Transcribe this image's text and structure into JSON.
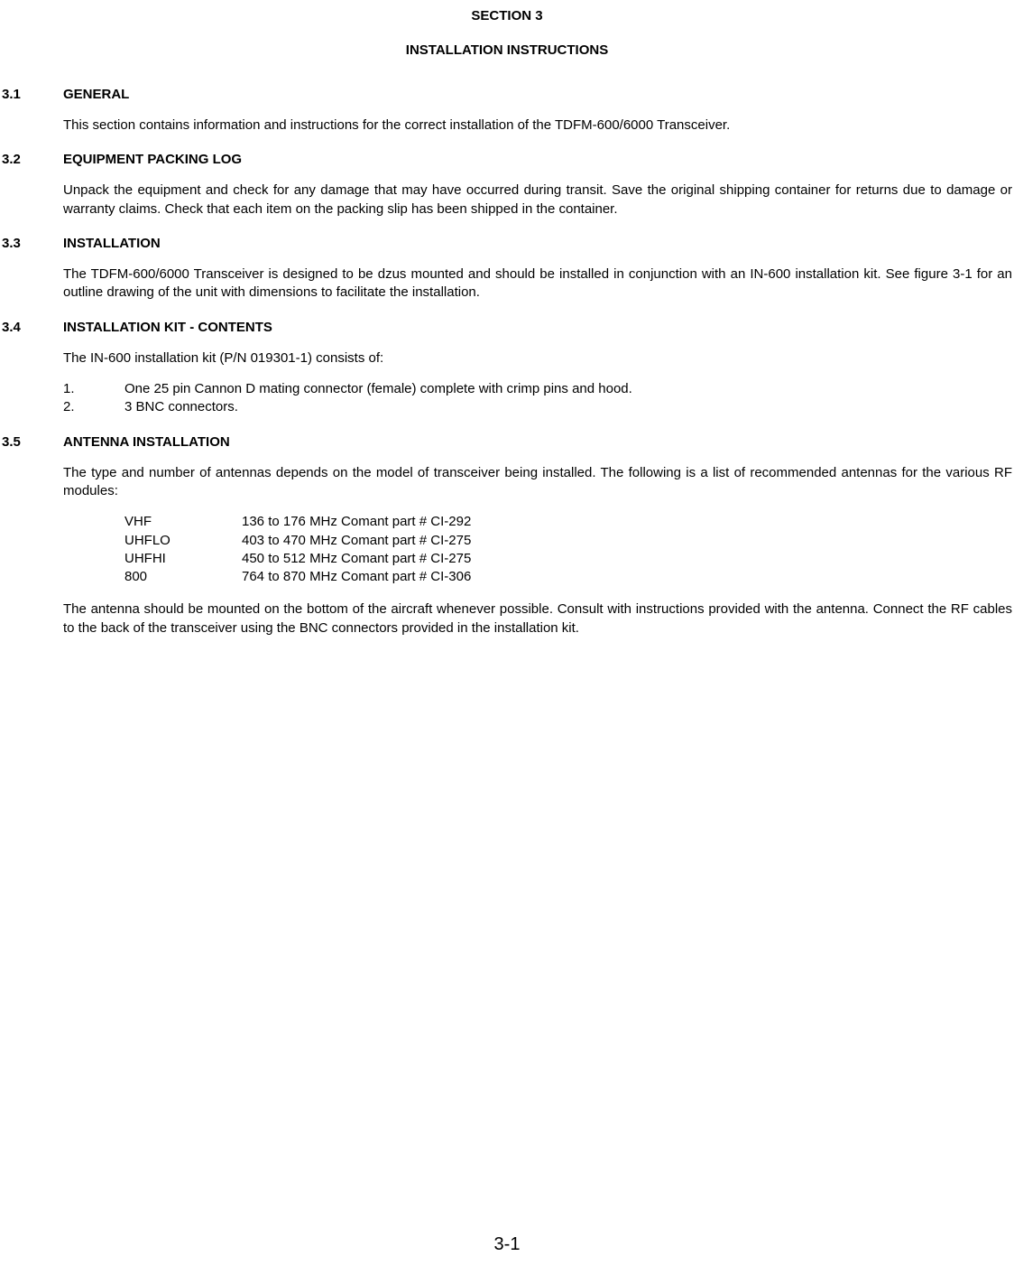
{
  "header": {
    "section": "SECTION 3",
    "title": "INSTALLATION INSTRUCTIONS"
  },
  "sections": [
    {
      "num": "3.1",
      "title": "GENERAL",
      "paragraphs": [
        "This section contains information and instructions for the correct installation of the TDFM-600/6000 Transceiver."
      ]
    },
    {
      "num": "3.2",
      "title": "EQUIPMENT PACKING LOG",
      "paragraphs": [
        "Unpack the equipment and check for any damage that may have occurred during transit.  Save the original shipping container for returns due to damage or warranty claims.  Check that each item on the packing slip has been shipped in the container."
      ]
    },
    {
      "num": "3.3",
      "title": "INSTALLATION",
      "paragraphs": [
        "The TDFM-600/6000 Transceiver is designed to be dzus mounted and should be installed in conjunction with an IN-600 installation kit. See figure 3-1 for an outline drawing of the unit with dimensions to facilitate the installation."
      ]
    },
    {
      "num": "3.4",
      "title": "INSTALLATION KIT - CONTENTS",
      "intro": "The IN-600 installation kit (P/N 019301-1) consists of:",
      "list": [
        {
          "num": "1.",
          "text": "One 25 pin Cannon D mating connector (female) complete with crimp pins and hood."
        },
        {
          "num": "2.",
          "text": "3 BNC connectors."
        }
      ]
    },
    {
      "num": "3.5",
      "title": "ANTENNA INSTALLATION",
      "intro": "The type and number of antennas depends on the model of transceiver being installed. The following is a list of recommended antennas for the various RF modules:",
      "antennas": [
        {
          "label": "VHF",
          "spec": "136 to 176 MHz Comant part # CI-292"
        },
        {
          "label": "UHFLO",
          "spec": "403 to 470 MHz Comant part # CI-275"
        },
        {
          "label": "UHFHI",
          "spec": "450 to 512 MHz Comant part # CI-275"
        },
        {
          "label": "800",
          "spec": "764 to 870 MHz Comant part # CI-306"
        }
      ],
      "closing": "The antenna should be mounted on the bottom of the aircraft whenever possible. Consult with instructions provided with the antenna. Connect the RF cables to the back of the transceiver using the BNC connectors provided in the installation kit."
    }
  ],
  "page_number": "3-1"
}
